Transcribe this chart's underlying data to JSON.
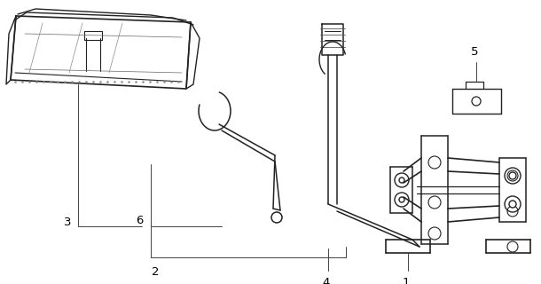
{
  "bg_color": "#ffffff",
  "line_color": "#222222",
  "label_color": "#000000",
  "fig_width": 6.1,
  "fig_height": 3.2,
  "dpi": 100
}
